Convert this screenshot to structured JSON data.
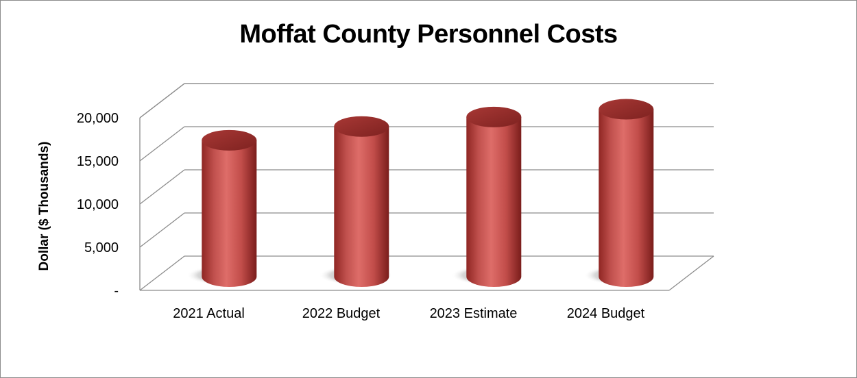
{
  "chart_data": {
    "type": "bar",
    "style": "3d-cylinder",
    "title": "Moffat County Personnel Costs",
    "xlabel": "",
    "ylabel": "Dollar ($ Thousands)",
    "categories": [
      "2021 Actual",
      "2022 Budget",
      "2023 Estimate",
      "2024 Budget"
    ],
    "values": [
      15800,
      17400,
      18500,
      19400
    ],
    "ylim": [
      0,
      20000
    ],
    "yticks": [
      {
        "value": 0,
        "label": "-"
      },
      {
        "value": 5000,
        "label": "5,000"
      },
      {
        "value": 10000,
        "label": "10,000"
      },
      {
        "value": 15000,
        "label": "15,000"
      },
      {
        "value": 20000,
        "label": "20,000"
      }
    ],
    "grid": true,
    "legend": "none",
    "bar_color": "#c0504d"
  }
}
